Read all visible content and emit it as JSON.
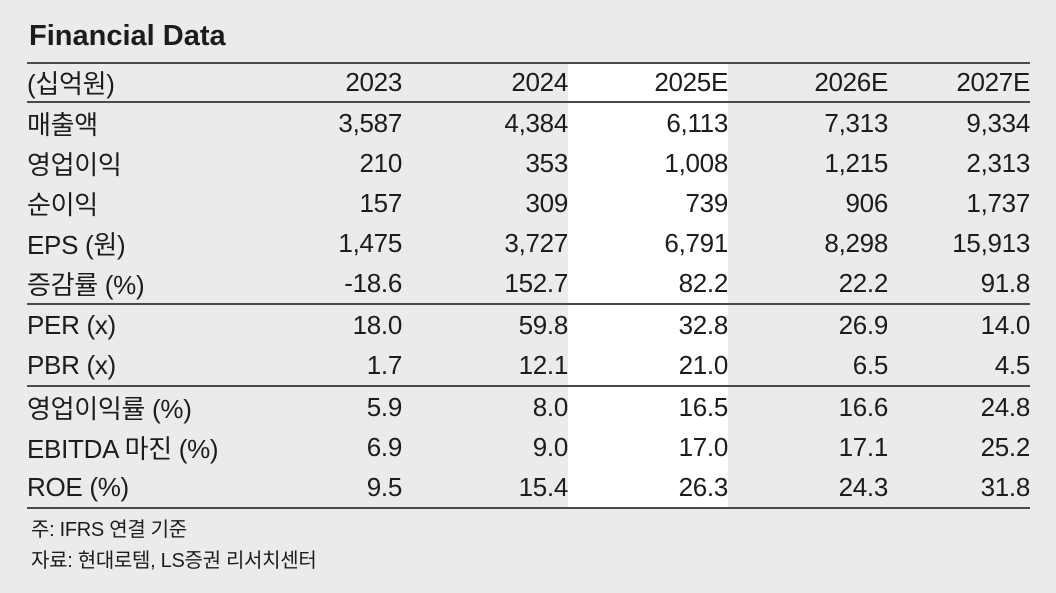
{
  "title": "Financial Data",
  "table": {
    "unit_label": "(십억원)",
    "columns": [
      "2023",
      "2024",
      "2025E",
      "2026E",
      "2027E"
    ],
    "highlight_column": "2025E",
    "rows": [
      {
        "label": "매출액",
        "values": [
          "3,587",
          "4,384",
          "6,113",
          "7,313",
          "9,334"
        ],
        "section_end": false
      },
      {
        "label": "영업이익",
        "values": [
          "210",
          "353",
          "1,008",
          "1,215",
          "2,313"
        ],
        "section_end": false
      },
      {
        "label": "순이익",
        "values": [
          "157",
          "309",
          "739",
          "906",
          "1,737"
        ],
        "section_end": false
      },
      {
        "label": "EPS (원)",
        "values": [
          "1,475",
          "3,727",
          "6,791",
          "8,298",
          "15,913"
        ],
        "section_end": false
      },
      {
        "label": "증감률 (%)",
        "values": [
          "-18.6",
          "152.7",
          "82.2",
          "22.2",
          "91.8"
        ],
        "section_end": true
      },
      {
        "label": "PER (x)",
        "values": [
          "18.0",
          "59.8",
          "32.8",
          "26.9",
          "14.0"
        ],
        "section_end": false
      },
      {
        "label": "PBR (x)",
        "values": [
          "1.7",
          "12.1",
          "21.0",
          "6.5",
          "4.5"
        ],
        "section_end": true
      },
      {
        "label": "영업이익률 (%)",
        "values": [
          "5.9",
          "8.0",
          "16.5",
          "16.6",
          "24.8"
        ],
        "section_end": false
      },
      {
        "label": "EBITDA 마진 (%)",
        "values": [
          "6.9",
          "9.0",
          "17.0",
          "17.1",
          "25.2"
        ],
        "section_end": false
      },
      {
        "label": "ROE (%)",
        "values": [
          "9.5",
          "15.4",
          "26.3",
          "24.3",
          "31.8"
        ],
        "section_end": true
      }
    ]
  },
  "footnotes": [
    "주: IFRS 연결 기준",
    "자료: 현대로템, LS증권 리서치센터"
  ],
  "chart_data": {
    "type": "table",
    "title": "Financial Data",
    "unit": "십억원",
    "categories": [
      "2023",
      "2024",
      "2025E",
      "2026E",
      "2027E"
    ],
    "series": [
      {
        "name": "매출액",
        "values": [
          3587,
          4384,
          6113,
          7313,
          9334
        ]
      },
      {
        "name": "영업이익",
        "values": [
          210,
          353,
          1008,
          1215,
          2313
        ]
      },
      {
        "name": "순이익",
        "values": [
          157,
          309,
          739,
          906,
          1737
        ]
      },
      {
        "name": "EPS (원)",
        "values": [
          1475,
          3727,
          6791,
          8298,
          15913
        ]
      },
      {
        "name": "증감률 (%)",
        "values": [
          -18.6,
          152.7,
          82.2,
          22.2,
          91.8
        ]
      },
      {
        "name": "PER (x)",
        "values": [
          18.0,
          59.8,
          32.8,
          26.9,
          14.0
        ]
      },
      {
        "name": "PBR (x)",
        "values": [
          1.7,
          12.1,
          21.0,
          6.5,
          4.5
        ]
      },
      {
        "name": "영업이익률 (%)",
        "values": [
          5.9,
          8.0,
          16.5,
          16.6,
          24.8
        ]
      },
      {
        "name": "EBITDA 마진 (%)",
        "values": [
          6.9,
          9.0,
          17.0,
          17.1,
          25.2
        ]
      },
      {
        "name": "ROE (%)",
        "values": [
          9.5,
          15.4,
          26.3,
          24.3,
          31.8
        ]
      }
    ],
    "highlight_column": "2025E"
  },
  "colors": {
    "background": "#ebebeb",
    "highlight_column_bg": "#ffffff",
    "rule": "#4a4a4a",
    "text": "#1c1c1c"
  }
}
